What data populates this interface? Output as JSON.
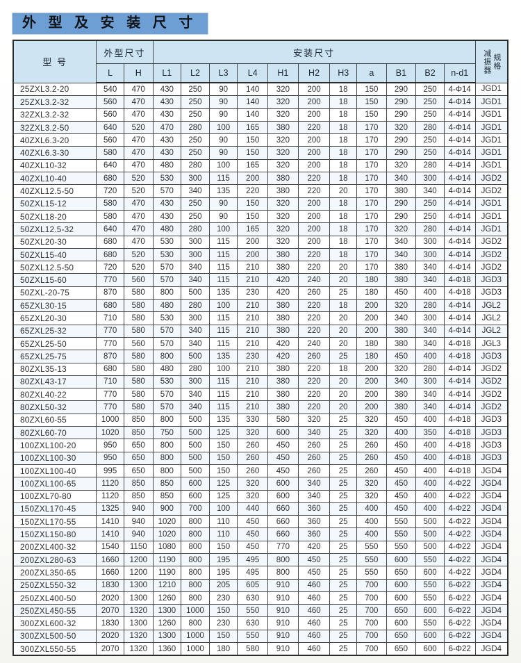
{
  "title": "外 型 及 安 装 尺 寸",
  "colors": {
    "title_bg": "#6d9ed4",
    "header_bg": "#cde4f3",
    "row_stripe": "#f2f8fc",
    "border": "#474747"
  },
  "table": {
    "header": {
      "model": "型  号",
      "overall": "外型尺寸",
      "install": "安装尺寸",
      "damper_vertical_left": "减振器",
      "damper_vertical_right": "规格",
      "sub_columns": [
        "L",
        "H",
        "L1",
        "L2",
        "L3",
        "L4",
        "H1",
        "H2",
        "H3",
        "a",
        "B1",
        "B2",
        "n-d1"
      ]
    },
    "rows": [
      [
        "25ZXL3.2-20",
        "540",
        "470",
        "430",
        "250",
        "90",
        "140",
        "320",
        "200",
        "18",
        "150",
        "290",
        "250",
        "4-Φ14",
        "JGD1"
      ],
      [
        "25ZXL3.2-32",
        "560",
        "470",
        "430",
        "250",
        "90",
        "140",
        "320",
        "200",
        "18",
        "150",
        "290",
        "250",
        "4-Φ14",
        "JGD1"
      ],
      [
        "32ZXL3.2-32",
        "560",
        "470",
        "430",
        "250",
        "90",
        "140",
        "320",
        "200",
        "18",
        "150",
        "290",
        "250",
        "4-Φ14",
        "JGD1"
      ],
      [
        "32ZXL3.2-50",
        "640",
        "520",
        "470",
        "280",
        "100",
        "165",
        "380",
        "220",
        "18",
        "170",
        "320",
        "280",
        "4-Φ14",
        "JGD1"
      ],
      [
        "40ZXL6.3-20",
        "560",
        "470",
        "430",
        "250",
        "90",
        "150",
        "320",
        "200",
        "18",
        "170",
        "290",
        "250",
        "4-Φ14",
        "JGD1"
      ],
      [
        "40ZXL6.3-30",
        "580",
        "470",
        "430",
        "250",
        "90",
        "150",
        "320",
        "200",
        "18",
        "170",
        "290",
        "250",
        "4-Φ14",
        "JGD1"
      ],
      [
        "40ZXL10-32",
        "640",
        "470",
        "480",
        "280",
        "100",
        "165",
        "320",
        "200",
        "18",
        "170",
        "320",
        "280",
        "4-Φ14",
        "JGD1"
      ],
      [
        "40ZXL10-40",
        "680",
        "520",
        "530",
        "300",
        "115",
        "200",
        "380",
        "220",
        "18",
        "170",
        "340",
        "300",
        "4-Φ14",
        "JGD2"
      ],
      [
        "40ZXL12.5-50",
        "720",
        "520",
        "570",
        "340",
        "135",
        "220",
        "380",
        "220",
        "20",
        "170",
        "380",
        "340",
        "4-Φ14",
        "JGD2"
      ],
      [
        "50ZXL15-12",
        "580",
        "470",
        "430",
        "250",
        "90",
        "150",
        "320",
        "200",
        "18",
        "170",
        "290",
        "250",
        "4-Φ14",
        "JGD1"
      ],
      [
        "50ZXL18-20",
        "580",
        "470",
        "430",
        "250",
        "90",
        "150",
        "320",
        "200",
        "18",
        "170",
        "290",
        "250",
        "4-Φ14",
        "JGD1"
      ],
      [
        "50ZXL12.5-32",
        "640",
        "470",
        "480",
        "280",
        "100",
        "165",
        "320",
        "200",
        "18",
        "170",
        "320",
        "280",
        "4-Φ14",
        "JGD1"
      ],
      [
        "50ZXL20-30",
        "680",
        "470",
        "530",
        "300",
        "115",
        "200",
        "320",
        "200",
        "18",
        "170",
        "340",
        "300",
        "4-Φ14",
        "JGD2"
      ],
      [
        "50ZXL15-40",
        "680",
        "520",
        "530",
        "300",
        "115",
        "200",
        "380",
        "220",
        "18",
        "170",
        "340",
        "300",
        "4-Φ14",
        "JGD2"
      ],
      [
        "50ZXL12.5-50",
        "720",
        "520",
        "570",
        "340",
        "115",
        "210",
        "380",
        "220",
        "20",
        "170",
        "380",
        "340",
        "4-Φ14",
        "JGD2"
      ],
      [
        "50ZXL15-60",
        "770",
        "560",
        "570",
        "340",
        "115",
        "210",
        "420",
        "240",
        "20",
        "180",
        "380",
        "340",
        "4-Φ18",
        "JGD3"
      ],
      [
        "50ZXL-20-75",
        "870",
        "580",
        "800",
        "500",
        "135",
        "230",
        "420",
        "260",
        "25",
        "180",
        "450",
        "400",
        "4-Φ18",
        "JGD3"
      ],
      [
        "65ZXL30-15",
        "680",
        "580",
        "480",
        "280",
        "100",
        "210",
        "380",
        "220",
        "18",
        "200",
        "320",
        "280",
        "4-Φ14",
        "JGL2"
      ],
      [
        "65ZXL20-30",
        "710",
        "580",
        "530",
        "300",
        "115",
        "210",
        "380",
        "220",
        "20",
        "200",
        "340",
        "300",
        "4-Φ14",
        "JGL2"
      ],
      [
        "65ZXL25-32",
        "770",
        "580",
        "570",
        "340",
        "115",
        "210",
        "380",
        "220",
        "20",
        "200",
        "380",
        "340",
        "4-Φ14",
        "JGL2"
      ],
      [
        "65ZXL25-50",
        "770",
        "560",
        "570",
        "340",
        "115",
        "210",
        "420",
        "240",
        "20",
        "180",
        "380",
        "340",
        "4-Φ18",
        "JGL3"
      ],
      [
        "65ZXL25-75",
        "870",
        "580",
        "800",
        "500",
        "135",
        "230",
        "420",
        "260",
        "25",
        "180",
        "450",
        "400",
        "4-Φ18",
        "JGD3"
      ],
      [
        "80ZXL35-13",
        "680",
        "580",
        "480",
        "280",
        "100",
        "210",
        "380",
        "220",
        "18",
        "200",
        "320",
        "280",
        "4-Φ14",
        "JGD2"
      ],
      [
        "80ZXL43-17",
        "710",
        "580",
        "530",
        "300",
        "115",
        "210",
        "380",
        "220",
        "20",
        "200",
        "340",
        "300",
        "4-Φ14",
        "JGD2"
      ],
      [
        "80ZXL40-22",
        "770",
        "580",
        "570",
        "340",
        "115",
        "210",
        "380",
        "220",
        "20",
        "200",
        "380",
        "340",
        "4-Φ14",
        "JGD2"
      ],
      [
        "80ZXL50-32",
        "770",
        "580",
        "570",
        "340",
        "115",
        "210",
        "380",
        "220",
        "20",
        "200",
        "380",
        "340",
        "4-Φ14",
        "JGD2"
      ],
      [
        "80ZXL60-55",
        "1000",
        "850",
        "800",
        "500",
        "135",
        "330",
        "580",
        "320",
        "25",
        "320",
        "450",
        "400",
        "4-Φ18",
        "JGD3"
      ],
      [
        "80ZXL60-70",
        "1020",
        "850",
        "750",
        "500",
        "125",
        "320",
        "600",
        "340",
        "25",
        "320",
        "400",
        "350",
        "4-Φ18",
        "JGD3"
      ],
      [
        "100ZXL100-20",
        "950",
        "650",
        "800",
        "500",
        "150",
        "260",
        "450",
        "260",
        "25",
        "260",
        "450",
        "400",
        "4-Φ18",
        "JGD3"
      ],
      [
        "100ZXL100-30",
        "950",
        "650",
        "800",
        "500",
        "150",
        "260",
        "450",
        "260",
        "25",
        "260",
        "450",
        "400",
        "4-Φ18",
        "JGD3"
      ],
      [
        "100ZXL100-40",
        "995",
        "650",
        "800",
        "500",
        "150",
        "260",
        "450",
        "260",
        "25",
        "260",
        "450",
        "400",
        "4-Φ18",
        "JGD4"
      ],
      [
        "100ZXL100-65",
        "1120",
        "850",
        "850",
        "600",
        "125",
        "320",
        "600",
        "340",
        "25",
        "320",
        "450",
        "400",
        "4-Φ22",
        "JGD4"
      ],
      [
        "100ZXL70-80",
        "1120",
        "850",
        "850",
        "600",
        "125",
        "320",
        "600",
        "340",
        "25",
        "320",
        "450",
        "400",
        "4-Φ22",
        "JGD4"
      ],
      [
        "150ZXL170-45",
        "1325",
        "940",
        "900",
        "700",
        "100",
        "440",
        "660",
        "360",
        "25",
        "400",
        "450",
        "400",
        "4-Φ22",
        "JGD4"
      ],
      [
        "150ZXL170-55",
        "1410",
        "940",
        "1020",
        "800",
        "110",
        "450",
        "660",
        "360",
        "25",
        "400",
        "550",
        "500",
        "4-Φ22",
        "JGD4"
      ],
      [
        "150ZXL150-80",
        "1410",
        "940",
        "1020",
        "800",
        "110",
        "450",
        "660",
        "360",
        "25",
        "400",
        "550",
        "500",
        "4-Φ22",
        "JGD4"
      ],
      [
        "200ZXL400-32",
        "1540",
        "1150",
        "1080",
        "800",
        "150",
        "450",
        "770",
        "420",
        "25",
        "550",
        "550",
        "500",
        "4-Φ22",
        "JGD4"
      ],
      [
        "200ZXL280-63",
        "1660",
        "1200",
        "1190",
        "800",
        "195",
        "495",
        "800",
        "450",
        "25",
        "550",
        "600",
        "550",
        "4-Φ22",
        "JGD4"
      ],
      [
        "200ZXL350-65",
        "1660",
        "1200",
        "1190",
        "800",
        "195",
        "495",
        "800",
        "450",
        "25",
        "550",
        "650",
        "600",
        "4-Φ22",
        "JGD4"
      ],
      [
        "250ZXL550-32",
        "1830",
        "1300",
        "1210",
        "800",
        "205",
        "605",
        "910",
        "460",
        "25",
        "700",
        "600",
        "550",
        "6-Φ22",
        "JGD4"
      ],
      [
        "250ZXL400-50",
        "2020",
        "1300",
        "1260",
        "800",
        "230",
        "630",
        "910",
        "460",
        "25",
        "700",
        "600",
        "550",
        "6-Φ22",
        "JGD4"
      ],
      [
        "250ZXL450-55",
        "2070",
        "1320",
        "1300",
        "1000",
        "150",
        "550",
        "910",
        "460",
        "25",
        "700",
        "650",
        "600",
        "6-Φ22",
        "JGD4"
      ],
      [
        "300ZXL600-32",
        "1830",
        "1300",
        "1260",
        "800",
        "230",
        "630",
        "910",
        "460",
        "25",
        "700",
        "600",
        "550",
        "6-Φ22",
        "JGD4"
      ],
      [
        "300ZXL500-50",
        "2020",
        "1320",
        "1300",
        "1000",
        "150",
        "550",
        "910",
        "460",
        "25",
        "700",
        "650",
        "600",
        "6-Φ22",
        "JGD4"
      ],
      [
        "300ZXL550-55",
        "2070",
        "1320",
        "1360",
        "1000",
        "180",
        "580",
        "910",
        "460",
        "25",
        "700",
        "650",
        "600",
        "6-Φ22",
        "JGD4"
      ]
    ]
  }
}
